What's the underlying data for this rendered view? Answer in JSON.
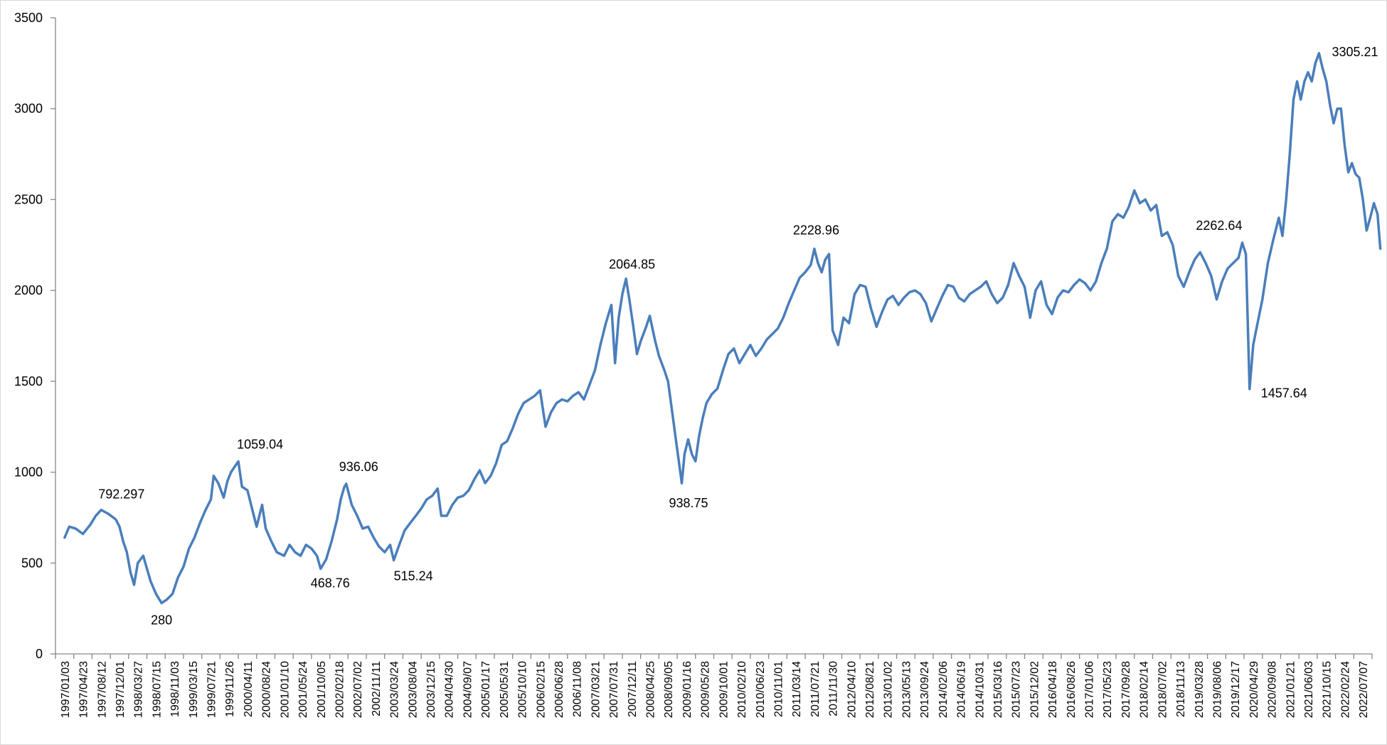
{
  "chart_data": {
    "type": "line",
    "title": "",
    "xlabel": "",
    "ylabel": "",
    "ylim": [
      0,
      3500
    ],
    "yticks": [
      0,
      500,
      1000,
      1500,
      2000,
      2500,
      3000,
      3500
    ],
    "xticks": [
      "1997/01/03",
      "1997/04/23",
      "1997/08/12",
      "1997/12/01",
      "1998/03/27",
      "1998/07/15",
      "1998/11/03",
      "1999/03/15",
      "1999/07/21",
      "1999/11/26",
      "2000/04/11",
      "2000/08/24",
      "2001/01/10",
      "2001/05/24",
      "2001/10/05",
      "2002/02/18",
      "2002/07/02",
      "2002/11/11",
      "2003/03/24",
      "2003/08/04",
      "2003/12/15",
      "2004/04/30",
      "2004/09/07",
      "2005/01/17",
      "2005/05/31",
      "2005/10/10",
      "2006/02/15",
      "2006/06/28",
      "2006/11/08",
      "2007/03/21",
      "2007/07/31",
      "2007/12/11",
      "2008/04/25",
      "2008/09/05",
      "2009/01/16",
      "2009/05/28",
      "2009/10/01",
      "2010/02/10",
      "2010/06/23",
      "2010/11/01",
      "2011/03/14",
      "2011/07/21",
      "2011/11/30",
      "2012/04/10",
      "2012/08/21",
      "2013/01/02",
      "2013/05/13",
      "2013/09/24",
      "2014/02/06",
      "2014/06/19",
      "2014/10/31",
      "2015/03/16",
      "2015/07/23",
      "2015/12/02",
      "2016/04/18",
      "2016/08/26",
      "2017/01/06",
      "2017/05/23",
      "2017/09/28",
      "2018/02/14",
      "2018/07/02",
      "2018/11/13",
      "2019/03/28",
      "2019/08/06",
      "2019/12/17",
      "2020/04/29",
      "2020/09/08",
      "2021/01/21",
      "2021/06/03",
      "2021/10/15",
      "2022/02/24",
      "2022/07/07"
    ],
    "grid": false,
    "legend": "none",
    "series": [
      {
        "color": "#4a7ebb",
        "points": [
          [
            0,
            640
          ],
          [
            0.25,
            700
          ],
          [
            0.6,
            690
          ],
          [
            1.0,
            660
          ],
          [
            1.4,
            710
          ],
          [
            1.7,
            760
          ],
          [
            2.0,
            792.297
          ],
          [
            2.4,
            770
          ],
          [
            2.8,
            740
          ],
          [
            3.0,
            700
          ],
          [
            3.2,
            620
          ],
          [
            3.4,
            560
          ],
          [
            3.6,
            450
          ],
          [
            3.8,
            380
          ],
          [
            4.0,
            500
          ],
          [
            4.3,
            540
          ],
          [
            4.5,
            470
          ],
          [
            4.7,
            400
          ],
          [
            5.0,
            330
          ],
          [
            5.3,
            280
          ],
          [
            5.6,
            300
          ],
          [
            5.9,
            330
          ],
          [
            6.2,
            420
          ],
          [
            6.5,
            480
          ],
          [
            6.8,
            580
          ],
          [
            7.1,
            640
          ],
          [
            7.4,
            720
          ],
          [
            7.7,
            790
          ],
          [
            8.0,
            850
          ],
          [
            8.15,
            980
          ],
          [
            8.4,
            940
          ],
          [
            8.7,
            860
          ],
          [
            8.9,
            950
          ],
          [
            9.1,
            1000
          ],
          [
            9.3,
            1030
          ],
          [
            9.5,
            1059.04
          ],
          [
            9.7,
            920
          ],
          [
            10.0,
            900
          ],
          [
            10.3,
            780
          ],
          [
            10.5,
            700
          ],
          [
            10.8,
            820
          ],
          [
            11.0,
            690
          ],
          [
            11.3,
            620
          ],
          [
            11.6,
            560
          ],
          [
            12.0,
            540
          ],
          [
            12.3,
            600
          ],
          [
            12.6,
            560
          ],
          [
            12.9,
            540
          ],
          [
            13.2,
            600
          ],
          [
            13.5,
            580
          ],
          [
            13.8,
            540
          ],
          [
            14.0,
            468.76
          ],
          [
            14.3,
            520
          ],
          [
            14.6,
            620
          ],
          [
            14.9,
            740
          ],
          [
            15.1,
            850
          ],
          [
            15.3,
            920
          ],
          [
            15.4,
            936.06
          ],
          [
            15.7,
            820
          ],
          [
            16.0,
            760
          ],
          [
            16.3,
            690
          ],
          [
            16.6,
            700
          ],
          [
            16.9,
            640
          ],
          [
            17.2,
            590
          ],
          [
            17.5,
            560
          ],
          [
            17.8,
            600
          ],
          [
            18.0,
            515.24
          ],
          [
            18.3,
            600
          ],
          [
            18.6,
            680
          ],
          [
            18.9,
            720
          ],
          [
            19.2,
            760
          ],
          [
            19.5,
            800
          ],
          [
            19.8,
            850
          ],
          [
            20.1,
            870
          ],
          [
            20.4,
            910
          ],
          [
            20.6,
            760
          ],
          [
            20.9,
            760
          ],
          [
            21.2,
            820
          ],
          [
            21.5,
            860
          ],
          [
            21.8,
            870
          ],
          [
            22.1,
            900
          ],
          [
            22.4,
            960
          ],
          [
            22.7,
            1010
          ],
          [
            23.0,
            940
          ],
          [
            23.3,
            980
          ],
          [
            23.6,
            1050
          ],
          [
            23.9,
            1150
          ],
          [
            24.2,
            1170
          ],
          [
            24.5,
            1240
          ],
          [
            24.8,
            1320
          ],
          [
            25.1,
            1380
          ],
          [
            25.4,
            1400
          ],
          [
            25.7,
            1420
          ],
          [
            26.0,
            1450
          ],
          [
            26.3,
            1250
          ],
          [
            26.6,
            1330
          ],
          [
            26.9,
            1380
          ],
          [
            27.2,
            1400
          ],
          [
            27.5,
            1390
          ],
          [
            27.8,
            1420
          ],
          [
            28.1,
            1440
          ],
          [
            28.4,
            1400
          ],
          [
            28.7,
            1480
          ],
          [
            29.0,
            1560
          ],
          [
            29.3,
            1700
          ],
          [
            29.6,
            1820
          ],
          [
            29.9,
            1920
          ],
          [
            30.1,
            1600
          ],
          [
            30.3,
            1850
          ],
          [
            30.5,
            1980
          ],
          [
            30.7,
            2064.85
          ],
          [
            30.9,
            1940
          ],
          [
            31.1,
            1800
          ],
          [
            31.3,
            1650
          ],
          [
            31.5,
            1720
          ],
          [
            31.8,
            1800
          ],
          [
            32.0,
            1860
          ],
          [
            32.3,
            1720
          ],
          [
            32.5,
            1640
          ],
          [
            32.8,
            1560
          ],
          [
            33.0,
            1500
          ],
          [
            33.2,
            1350
          ],
          [
            33.4,
            1200
          ],
          [
            33.6,
            1050
          ],
          [
            33.75,
            938.75
          ],
          [
            33.9,
            1100
          ],
          [
            34.1,
            1180
          ],
          [
            34.3,
            1100
          ],
          [
            34.5,
            1060
          ],
          [
            34.7,
            1200
          ],
          [
            34.9,
            1300
          ],
          [
            35.1,
            1380
          ],
          [
            35.4,
            1430
          ],
          [
            35.7,
            1460
          ],
          [
            36.0,
            1560
          ],
          [
            36.3,
            1650
          ],
          [
            36.6,
            1680
          ],
          [
            36.9,
            1600
          ],
          [
            37.2,
            1650
          ],
          [
            37.5,
            1700
          ],
          [
            37.8,
            1640
          ],
          [
            38.1,
            1680
          ],
          [
            38.4,
            1730
          ],
          [
            38.7,
            1760
          ],
          [
            39.0,
            1790
          ],
          [
            39.3,
            1850
          ],
          [
            39.6,
            1930
          ],
          [
            39.9,
            2000
          ],
          [
            40.2,
            2070
          ],
          [
            40.5,
            2100
          ],
          [
            40.8,
            2140
          ],
          [
            41.0,
            2228.96
          ],
          [
            41.2,
            2150
          ],
          [
            41.4,
            2100
          ],
          [
            41.6,
            2170
          ],
          [
            41.8,
            2200
          ],
          [
            42.0,
            1780
          ],
          [
            42.3,
            1700
          ],
          [
            42.6,
            1850
          ],
          [
            42.9,
            1820
          ],
          [
            43.2,
            1980
          ],
          [
            43.5,
            2030
          ],
          [
            43.8,
            2020
          ],
          [
            44.1,
            1900
          ],
          [
            44.4,
            1800
          ],
          [
            44.7,
            1880
          ],
          [
            45.0,
            1950
          ],
          [
            45.3,
            1970
          ],
          [
            45.6,
            1920
          ],
          [
            45.9,
            1960
          ],
          [
            46.2,
            1990
          ],
          [
            46.5,
            2000
          ],
          [
            46.8,
            1980
          ],
          [
            47.1,
            1930
          ],
          [
            47.4,
            1830
          ],
          [
            47.7,
            1900
          ],
          [
            48.0,
            1970
          ],
          [
            48.3,
            2030
          ],
          [
            48.6,
            2020
          ],
          [
            48.9,
            1960
          ],
          [
            49.2,
            1940
          ],
          [
            49.5,
            1980
          ],
          [
            49.8,
            2000
          ],
          [
            50.1,
            2020
          ],
          [
            50.4,
            2050
          ],
          [
            50.7,
            1980
          ],
          [
            51.0,
            1930
          ],
          [
            51.3,
            1960
          ],
          [
            51.6,
            2030
          ],
          [
            51.9,
            2150
          ],
          [
            52.2,
            2080
          ],
          [
            52.5,
            2020
          ],
          [
            52.8,
            1850
          ],
          [
            53.1,
            2000
          ],
          [
            53.4,
            2050
          ],
          [
            53.7,
            1920
          ],
          [
            54.0,
            1870
          ],
          [
            54.3,
            1960
          ],
          [
            54.6,
            2000
          ],
          [
            54.9,
            1990
          ],
          [
            55.2,
            2030
          ],
          [
            55.5,
            2060
          ],
          [
            55.8,
            2040
          ],
          [
            56.1,
            2000
          ],
          [
            56.4,
            2050
          ],
          [
            56.7,
            2150
          ],
          [
            57.0,
            2230
          ],
          [
            57.3,
            2380
          ],
          [
            57.6,
            2420
          ],
          [
            57.9,
            2400
          ],
          [
            58.2,
            2460
          ],
          [
            58.5,
            2550
          ],
          [
            58.8,
            2480
          ],
          [
            59.1,
            2500
          ],
          [
            59.4,
            2440
          ],
          [
            59.7,
            2470
          ],
          [
            60.0,
            2300
          ],
          [
            60.3,
            2320
          ],
          [
            60.6,
            2250
          ],
          [
            60.9,
            2080
          ],
          [
            61.2,
            2020
          ],
          [
            61.5,
            2100
          ],
          [
            61.8,
            2170
          ],
          [
            62.1,
            2210
          ],
          [
            62.4,
            2150
          ],
          [
            62.7,
            2080
          ],
          [
            63.0,
            1950
          ],
          [
            63.3,
            2050
          ],
          [
            63.6,
            2120
          ],
          [
            63.9,
            2150
          ],
          [
            64.2,
            2180
          ],
          [
            64.4,
            2262.64
          ],
          [
            64.6,
            2200
          ],
          [
            64.8,
            1457.64
          ],
          [
            65.0,
            1700
          ],
          [
            65.2,
            1800
          ],
          [
            65.5,
            1950
          ],
          [
            65.8,
            2150
          ],
          [
            66.1,
            2280
          ],
          [
            66.4,
            2400
          ],
          [
            66.6,
            2300
          ],
          [
            66.8,
            2500
          ],
          [
            67.0,
            2750
          ],
          [
            67.2,
            3050
          ],
          [
            67.4,
            3150
          ],
          [
            67.6,
            3050
          ],
          [
            67.8,
            3150
          ],
          [
            68.0,
            3200
          ],
          [
            68.2,
            3150
          ],
          [
            68.4,
            3250
          ],
          [
            68.6,
            3305.21
          ],
          [
            68.8,
            3220
          ],
          [
            69.0,
            3150
          ],
          [
            69.2,
            3020
          ],
          [
            69.4,
            2920
          ],
          [
            69.6,
            3000
          ],
          [
            69.8,
            3000
          ],
          [
            70.0,
            2800
          ],
          [
            70.2,
            2650
          ],
          [
            70.4,
            2700
          ],
          [
            70.6,
            2640
          ],
          [
            70.8,
            2620
          ],
          [
            71.0,
            2500
          ],
          [
            71.2,
            2330
          ],
          [
            71.4,
            2400
          ],
          [
            71.6,
            2480
          ],
          [
            71.8,
            2420
          ],
          [
            71.95,
            2230
          ]
        ]
      }
    ],
    "annotations": [
      {
        "text": "792.297",
        "x": 2.0,
        "y": 792.297,
        "anchor": "start",
        "dx": -4,
        "dy": -16
      },
      {
        "text": "280",
        "x": 5.3,
        "y": 280,
        "anchor": "middle",
        "dx": 0,
        "dy": 30
      },
      {
        "text": "1059.04",
        "x": 9.5,
        "y": 1059.04,
        "anchor": "start",
        "dx": -2,
        "dy": -18
      },
      {
        "text": "468.76",
        "x": 14.0,
        "y": 468.76,
        "anchor": "start",
        "dx": -14,
        "dy": 26
      },
      {
        "text": "936.06",
        "x": 15.4,
        "y": 936.06,
        "anchor": "start",
        "dx": -10,
        "dy": -18
      },
      {
        "text": "515.24",
        "x": 18.0,
        "y": 515.24,
        "anchor": "start",
        "dx": 0,
        "dy": 28
      },
      {
        "text": "2064.85",
        "x": 30.7,
        "y": 2064.85,
        "anchor": "start",
        "dx": -24,
        "dy": -14
      },
      {
        "text": "938.75",
        "x": 33.75,
        "y": 938.75,
        "anchor": "start",
        "dx": -18,
        "dy": 34
      },
      {
        "text": "2228.96",
        "x": 41.0,
        "y": 2228.96,
        "anchor": "start",
        "dx": -30,
        "dy": -20
      },
      {
        "text": "2262.64",
        "x": 64.4,
        "y": 2262.64,
        "anchor": "end",
        "dx": 0,
        "dy": -18
      },
      {
        "text": "1457.64",
        "x": 64.8,
        "y": 1457.64,
        "anchor": "start",
        "dx": 16,
        "dy": 12
      },
      {
        "text": "3305.21",
        "x": 68.6,
        "y": 3305.21,
        "anchor": "start",
        "dx": 18,
        "dy": 4
      }
    ]
  }
}
